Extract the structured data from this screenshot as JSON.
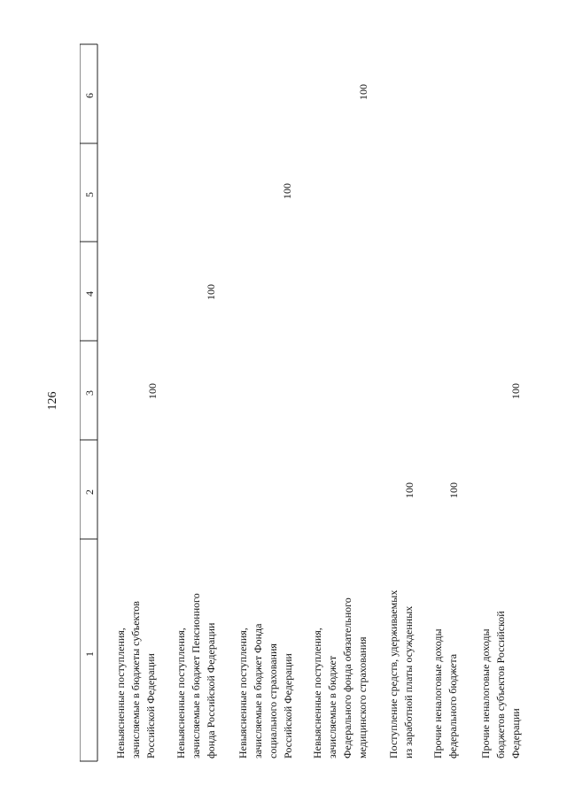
{
  "page_number": "126",
  "header": [
    "1",
    "2",
    "3",
    "4",
    "5",
    "6"
  ],
  "rows": [
    {
      "lines": [
        "Невыясненные поступления,",
        "зачисляемые в бюджеты субъектов",
        "Российской Федерации"
      ],
      "col3": "100"
    },
    {
      "lines": [
        "Невыясненные поступления,",
        "зачисляемые в бюджет Пенсионного",
        "фонда Российской Федерации"
      ],
      "col4": "100"
    },
    {
      "lines": [
        "Невыясненные поступления,",
        "зачисляемые в бюджет Фонда",
        "социального страхования",
        "Российской Федерации"
      ],
      "col5": "100"
    },
    {
      "lines": [
        "Невыясненные поступления,",
        "зачисляемые в бюджет",
        "Федерального фонда обязательного",
        "медицинского страхования"
      ],
      "col6": "100"
    },
    {
      "lines": [
        "Поступление средств, удерживаемых",
        "из заработной платы осужденных"
      ],
      "col2": "100"
    },
    {
      "lines": [
        "Прочие неналоговые доходы",
        "федерального бюджета"
      ],
      "col2": "100"
    },
    {
      "lines": [
        "Прочие неналоговые доходы",
        "бюджетов субъектов Российской",
        "Федерации"
      ],
      "col3": "100"
    }
  ]
}
